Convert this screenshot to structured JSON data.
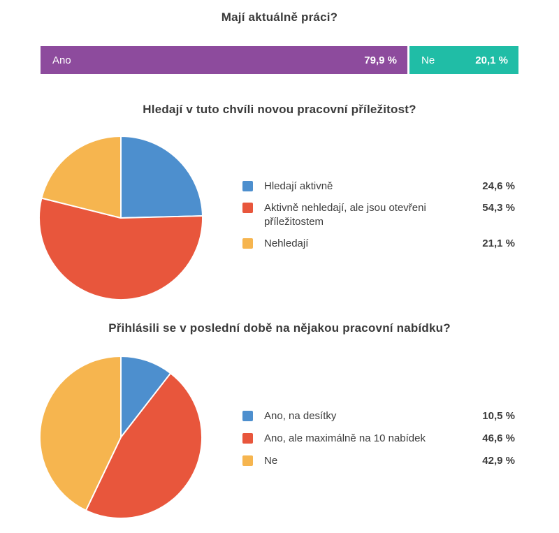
{
  "colors": {
    "purple": "#8d4b9d",
    "teal": "#20bda6",
    "blue": "#4d8fce",
    "red": "#e8563c",
    "yellow": "#f6b54f",
    "title_text": "#3a3a3a",
    "legend_text": "#3c3c3c",
    "bar_text": "#ffffff",
    "background": "#ffffff"
  },
  "chart_data": [
    {
      "type": "bar",
      "variant": "stacked-horizontal",
      "title": "Mají aktuálně práci?",
      "categories": [
        "Ano",
        "Ne"
      ],
      "values": [
        79.9,
        20.1
      ],
      "value_labels": [
        "79,9 %",
        "20,1 %"
      ],
      "colors": [
        "#8d4b9d",
        "#20bda6"
      ],
      "xlim": [
        0,
        100
      ],
      "grid": false,
      "legend_position": "none"
    },
    {
      "type": "pie",
      "title": "Hledají v tuto chvíli novou pracovní příležitost?",
      "categories": [
        "Hledají aktivně",
        "Aktivně nehledají, ale jsou otevřeni příležitostem",
        "Nehledají"
      ],
      "values": [
        24.6,
        54.3,
        21.1
      ],
      "value_labels": [
        "24,6 %",
        "54,3 %",
        "21,1 %"
      ],
      "colors": [
        "#4d8fce",
        "#e8563c",
        "#f6b54f"
      ],
      "start_angle_deg": 0,
      "direction": "clockwise",
      "legend_position": "right"
    },
    {
      "type": "pie",
      "title": "Přihlásili se v poslední době na nějakou pracovní nabídku?",
      "categories": [
        "Ano, na desítky",
        "Ano, ale maximálně na 10 nabídek",
        "Ne"
      ],
      "values": [
        10.5,
        46.6,
        42.9
      ],
      "value_labels": [
        "10,5 %",
        "46,6 %",
        "42,9 %"
      ],
      "colors": [
        "#4d8fce",
        "#e8563c",
        "#f6b54f"
      ],
      "start_angle_deg": 0,
      "direction": "clockwise",
      "legend_position": "right"
    }
  ]
}
